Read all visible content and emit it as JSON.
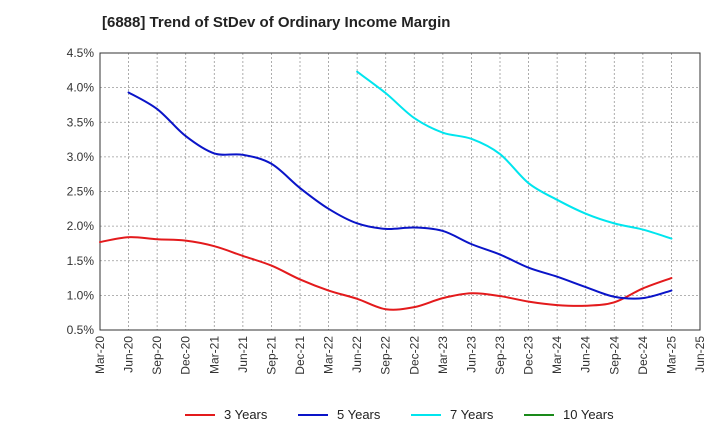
{
  "chart_data": {
    "type": "line",
    "title": "[6888]  Trend of StDev of Ordinary Income Margin",
    "xlabel": "",
    "ylabel": "",
    "ylim": [
      0.5,
      4.5
    ],
    "yticks": [
      "0.5%",
      "1.0%",
      "1.5%",
      "2.0%",
      "2.5%",
      "3.0%",
      "3.5%",
      "4.0%",
      "4.5%"
    ],
    "ytick_values": [
      0.5,
      1.0,
      1.5,
      2.0,
      2.5,
      3.0,
      3.5,
      4.0,
      4.5
    ],
    "xticks": [
      "Mar-20",
      "Jun-20",
      "Sep-20",
      "Dec-20",
      "Mar-21",
      "Jun-21",
      "Sep-21",
      "Dec-21",
      "Mar-22",
      "Jun-22",
      "Sep-22",
      "Dec-22",
      "Mar-23",
      "Jun-23",
      "Sep-23",
      "Dec-23",
      "Mar-24",
      "Jun-24",
      "Sep-24",
      "Dec-24",
      "Mar-25",
      "Jun-25"
    ],
    "grid": true,
    "legend_position": "bottom",
    "series": [
      {
        "name": "3 Years",
        "color": "#e31a1c",
        "x": [
          "Mar-20",
          "Jun-20",
          "Sep-20",
          "Dec-20",
          "Mar-21",
          "Jun-21",
          "Sep-21",
          "Dec-21",
          "Mar-22",
          "Jun-22",
          "Sep-22",
          "Dec-22",
          "Mar-23",
          "Jun-23",
          "Sep-23",
          "Dec-23",
          "Mar-24",
          "Jun-24",
          "Sep-24",
          "Dec-24",
          "Mar-25"
        ],
        "values": [
          1.77,
          1.84,
          1.81,
          1.79,
          1.71,
          1.57,
          1.43,
          1.23,
          1.07,
          0.95,
          0.8,
          0.83,
          0.96,
          1.03,
          0.99,
          0.91,
          0.86,
          0.85,
          0.9,
          1.1,
          1.25
        ]
      },
      {
        "name": "5 Years",
        "color": "#0a14c8",
        "x": [
          "Jun-20",
          "Sep-20",
          "Dec-20",
          "Mar-21",
          "Jun-21",
          "Sep-21",
          "Dec-21",
          "Mar-22",
          "Jun-22",
          "Sep-22",
          "Dec-22",
          "Mar-23",
          "Jun-23",
          "Sep-23",
          "Dec-23",
          "Mar-24",
          "Jun-24",
          "Sep-24",
          "Dec-24",
          "Mar-25"
        ],
        "values": [
          3.93,
          3.69,
          3.3,
          3.05,
          3.03,
          2.9,
          2.55,
          2.25,
          2.04,
          1.96,
          1.98,
          1.93,
          1.74,
          1.59,
          1.4,
          1.27,
          1.12,
          0.98,
          0.96,
          1.07
        ]
      },
      {
        "name": "7 Years",
        "color": "#00e5ee",
        "x": [
          "Jun-22",
          "Sep-22",
          "Dec-22",
          "Mar-23",
          "Jun-23",
          "Sep-23",
          "Dec-23",
          "Mar-24",
          "Jun-24",
          "Sep-24",
          "Dec-24",
          "Mar-25"
        ],
        "values": [
          4.23,
          3.92,
          3.56,
          3.35,
          3.26,
          3.04,
          2.62,
          2.38,
          2.18,
          2.04,
          1.95,
          1.82
        ]
      },
      {
        "name": "10 Years",
        "color": "#1a8a1a",
        "x": [],
        "values": []
      }
    ]
  }
}
